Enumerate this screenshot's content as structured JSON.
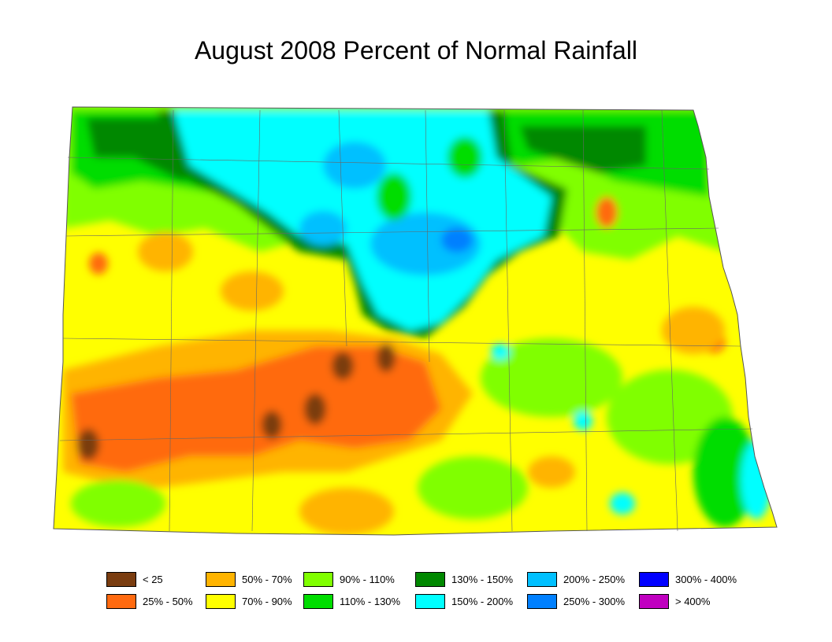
{
  "title": "August 2008 Percent of Normal Rainfall",
  "legend": [
    {
      "label": "< 25",
      "color": "#7a3d10"
    },
    {
      "label": "25% - 50%",
      "color": "#ff6a10"
    },
    {
      "label": "50% - 70%",
      "color": "#ffb400"
    },
    {
      "label": "70% - 90%",
      "color": "#ffff00"
    },
    {
      "label": "90% - 110%",
      "color": "#80ff00"
    },
    {
      "label": "110% - 130%",
      "color": "#00dd00"
    },
    {
      "label": "130% - 150%",
      "color": "#008800"
    },
    {
      "label": "150% - 200%",
      "color": "#00ffff"
    },
    {
      "label": "200% - 250%",
      "color": "#00c0ff"
    },
    {
      "label": "250% - 300%",
      "color": "#0080ff"
    },
    {
      "label": "300% - 400%",
      "color": "#0000ff"
    },
    {
      "label": "> 400%",
      "color": "#c000c0"
    }
  ]
}
